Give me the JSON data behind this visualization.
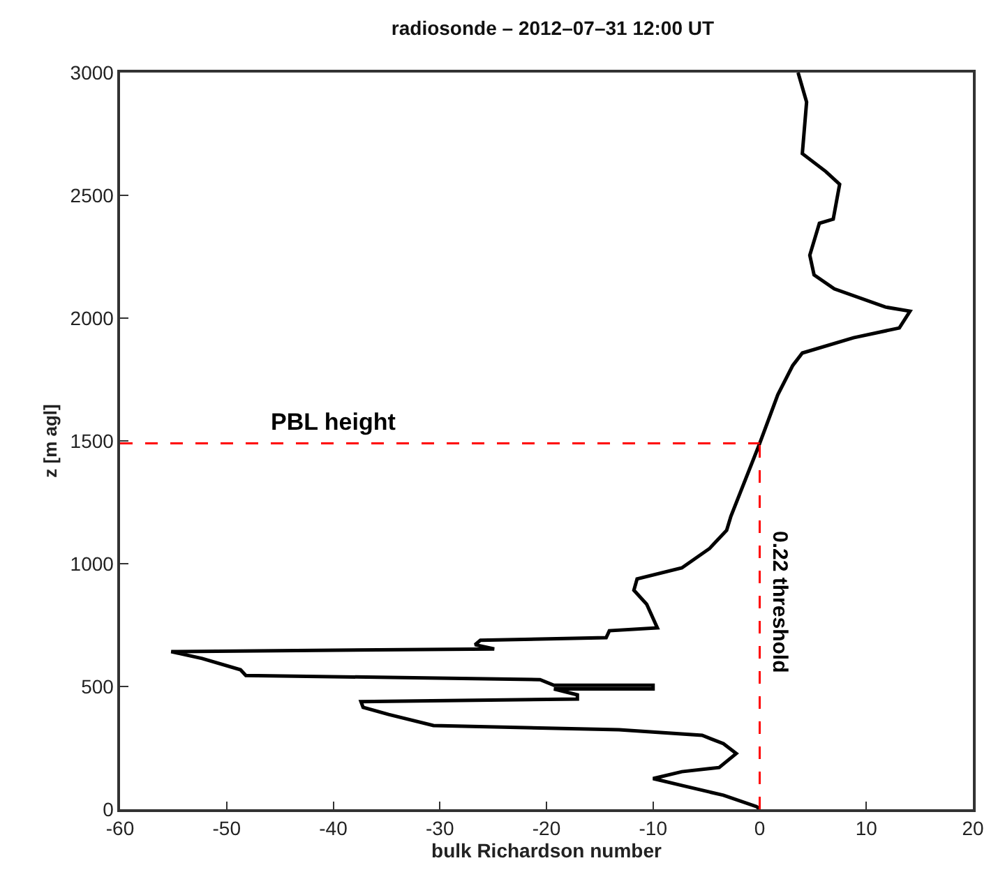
{
  "chart_data": {
    "type": "line",
    "title": "radiosonde – 2012–07–31 12:00 UT",
    "xlabel": "bulk Richardson number",
    "ylabel": "z [m agl]",
    "xlim": [
      -60,
      20
    ],
    "xticks": [
      -60,
      -50,
      -40,
      -30,
      -20,
      -10,
      0,
      10,
      20
    ],
    "ylim": [
      0,
      3000
    ],
    "yticks": [
      0,
      500,
      1000,
      1500,
      2000,
      2500,
      3000
    ],
    "marker": "none",
    "line_style": "solid",
    "series": [
      {
        "color": "#000000",
        "x": [
          3.6,
          4.4,
          4.0,
          6.2,
          7.5,
          6.9,
          5.6,
          4.7,
          5.1,
          7.0,
          11.8,
          14.1,
          13.1,
          8.8,
          4.0,
          3.1,
          1.7,
          0.0,
          -2.7,
          -3.1,
          -4.7,
          -7.3,
          -11.5,
          -11.8,
          -10.6,
          -9.6,
          -14.1,
          -14.4,
          -26.2,
          -26.7,
          -24.9,
          -55.2,
          -52.3,
          -48.7,
          -48.2,
          -20.6,
          -19.3,
          -10.0,
          -10.0,
          -19.3,
          -17.1,
          -17.1,
          -37.4,
          -37.2,
          -34.8,
          -30.6,
          -13.2,
          -5.4,
          -3.4,
          -2.2,
          -3.8,
          -7.3,
          -10.0,
          -7.3,
          -3.4,
          -0.3,
          0.0
        ],
        "values": [
          3000,
          2880,
          2670,
          2597,
          2545,
          2403,
          2386,
          2256,
          2176,
          2119,
          2045,
          2028,
          1960,
          1920,
          1858,
          1807,
          1688,
          1490,
          1193,
          1136,
          1062,
          983,
          938,
          892,
          835,
          739,
          727,
          699,
          688,
          670,
          653,
          642,
          614,
          568,
          545,
          528,
          505,
          505,
          490,
          490,
          466,
          449,
          438,
          415,
          386,
          341,
          324,
          301,
          267,
          227,
          170,
          153,
          125,
          97,
          57,
          11,
          0
        ]
      }
    ],
    "ref_lines": [
      {
        "axis": "y",
        "value": 1490,
        "label": "PBL height",
        "color": "#ff0000",
        "line_style": "dashed"
      },
      {
        "axis": "x",
        "value": 0,
        "label": "0.22 threshold",
        "color": "#ff0000",
        "line_style": "dashed"
      }
    ]
  }
}
